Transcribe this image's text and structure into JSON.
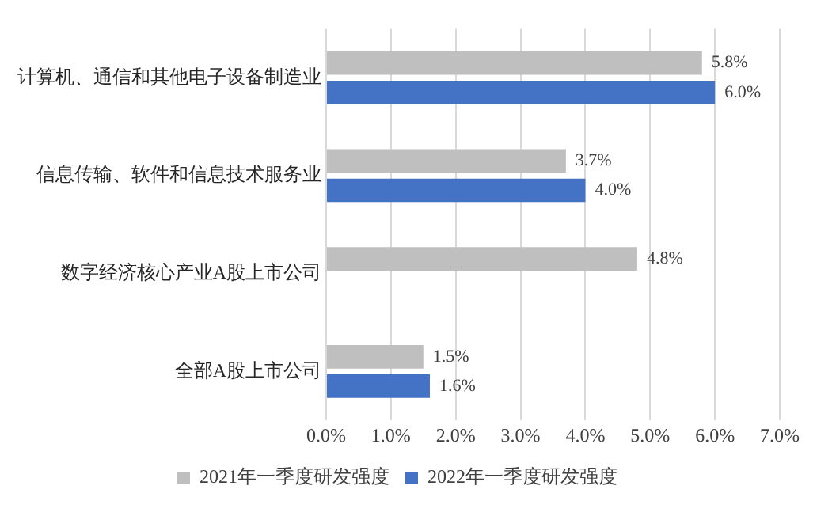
{
  "chart_data": {
    "type": "bar",
    "orientation": "horizontal",
    "categories": [
      "计算机、通信和其他电子设备制造业",
      "信息传输、软件和信息技术服务业",
      "数字经济核心产业A股上市公司",
      "全部A股上市公司"
    ],
    "series": [
      {
        "name": "2021年一季度研发强度",
        "color": "#bfbfbf",
        "values": [
          5.8,
          3.7,
          4.8,
          1.5
        ],
        "value_labels": [
          "5.8%",
          "3.7%",
          "4.8%",
          "1.5%"
        ]
      },
      {
        "name": "2022年一季度研发强度",
        "color": "#4472c4",
        "values": [
          6.0,
          4.0,
          null,
          1.6
        ],
        "value_labels": [
          "6.0%",
          "4.0%",
          null,
          "1.6%"
        ]
      }
    ],
    "xlim": [
      0,
      7
    ],
    "xticks": [
      {
        "value": 0,
        "label": "0.0%"
      },
      {
        "value": 1,
        "label": "1.0%"
      },
      {
        "value": 2,
        "label": "2.0%"
      },
      {
        "value": 3,
        "label": "3.0%"
      },
      {
        "value": 4,
        "label": "4.0%"
      },
      {
        "value": 5,
        "label": "5.0%"
      },
      {
        "value": 6,
        "label": "6.0%"
      },
      {
        "value": 7,
        "label": "7.0%"
      }
    ],
    "grid": "x",
    "legend": "bottom"
  }
}
